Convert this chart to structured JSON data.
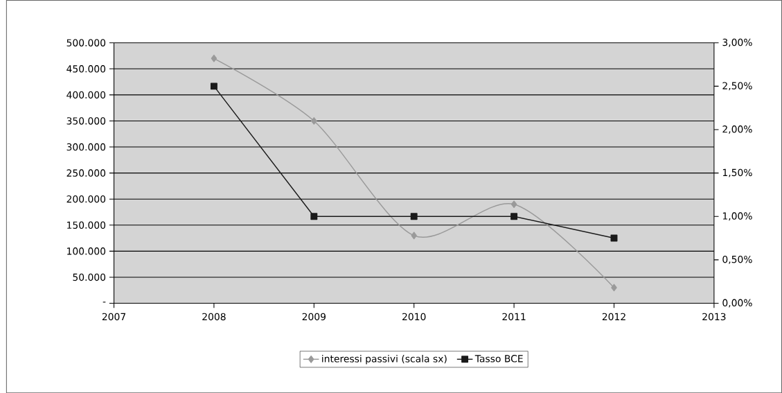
{
  "chart_data": {
    "type": "line",
    "x": [
      2008,
      2009,
      2010,
      2011,
      2012
    ],
    "series": [
      {
        "name": "interessi passivi (scala sx)",
        "color": "#9a9a9a",
        "values": [
          470000,
          350000,
          130000,
          190000,
          30000
        ],
        "marker": "diamond",
        "axis": "y"
      },
      {
        "name": "Tasso BCE",
        "color": "#1a1a1a",
        "values": [
          2.5,
          1,
          1,
          1,
          0.75
        ],
        "marker": "square",
        "axis": "y2"
      }
    ],
    "xlim": [
      2007,
      2013
    ],
    "xticks": [
      2007,
      2008,
      2009,
      2010,
      2011,
      2012,
      2013
    ],
    "ylim": [
      0,
      500000
    ],
    "yticks": [
      {
        "value": 0,
        "label": "-"
      },
      {
        "value": 50000,
        "label": "50.000"
      },
      {
        "value": 100000,
        "label": "100.000"
      },
      {
        "value": 150000,
        "label": "150.000"
      },
      {
        "value": 200000,
        "label": "200.000"
      },
      {
        "value": 250000,
        "label": "250.000"
      },
      {
        "value": 300000,
        "label": "300.000"
      },
      {
        "value": 350000,
        "label": "350.000"
      },
      {
        "value": 400000,
        "label": "400.000"
      },
      {
        "value": 450000,
        "label": "450.000"
      },
      {
        "value": 500000,
        "label": "500.000"
      }
    ],
    "y2lim": [
      0,
      3
    ],
    "y2ticks": [
      {
        "value": 0,
        "label": "0,00%"
      },
      {
        "value": 0.5,
        "label": "0,50%"
      },
      {
        "value": 1,
        "label": "1,00%"
      },
      {
        "value": 1.5,
        "label": "1,50%"
      },
      {
        "value": 2,
        "label": "2,00%"
      },
      {
        "value": 2.5,
        "label": "2,50%"
      },
      {
        "value": 3,
        "label": "3,00%"
      }
    ],
    "grid": "y",
    "legend": "bottom",
    "line_style": "solid"
  }
}
